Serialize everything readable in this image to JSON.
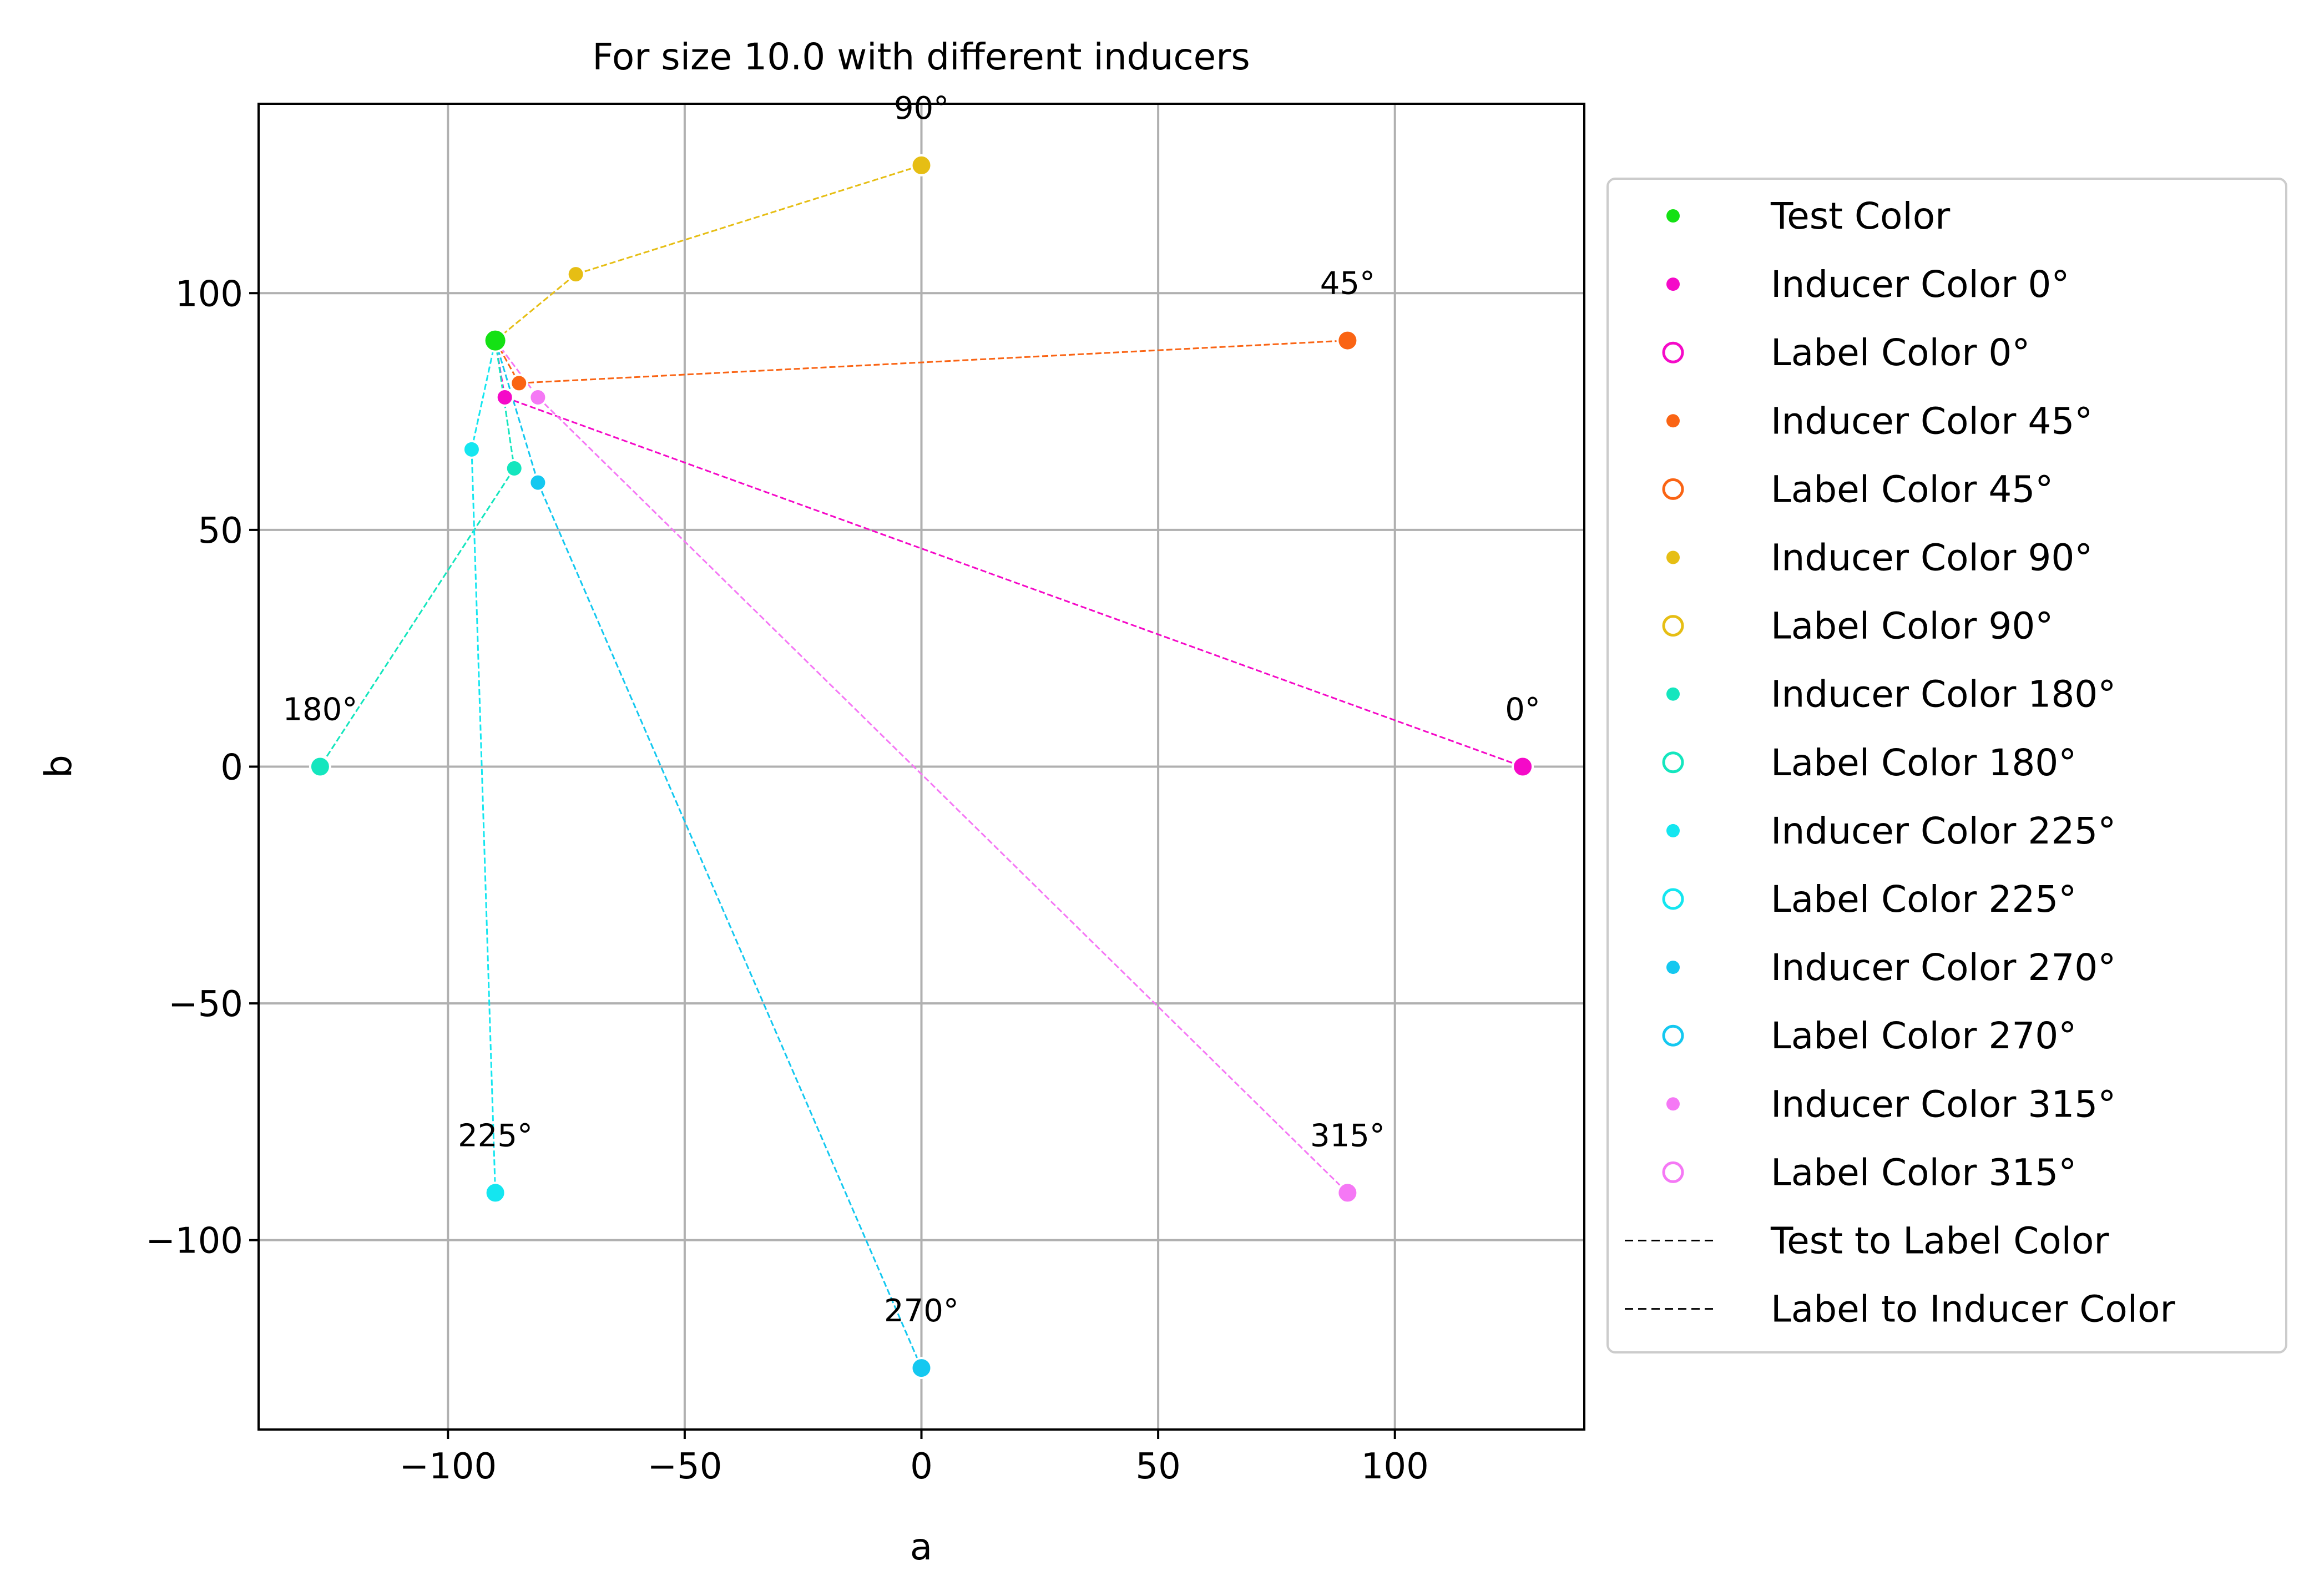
{
  "chart_data": {
    "type": "scatter",
    "title": "For size 10.0 with different inducers",
    "xlabel": "a",
    "ylabel": "b",
    "xlim": [
      -140,
      140
    ],
    "ylim": [
      -140,
      140
    ],
    "x_ticks": [
      -100,
      -50,
      0,
      50,
      100
    ],
    "y_ticks": [
      -100,
      -50,
      0,
      50,
      100
    ],
    "x_tick_labels": [
      "−100",
      "−50",
      "0",
      "50",
      "100"
    ],
    "y_tick_labels": [
      "−100",
      "−50",
      "0",
      "50",
      "100"
    ],
    "grid": true,
    "legend_position": "outside-right",
    "test_color": {
      "label": "Test Color",
      "a": -90,
      "b": 90,
      "color": "#14e114"
    },
    "inducers": [
      {
        "angle_label": "0°",
        "inducer": [
          127,
          0
        ],
        "label_point": [
          -88,
          78
        ],
        "color": "#f50ac8"
      },
      {
        "angle_label": "45°",
        "inducer": [
          90,
          90
        ],
        "label_point": [
          -85,
          81
        ],
        "color": "#fa6414"
      },
      {
        "angle_label": "90°",
        "inducer": [
          0,
          127
        ],
        "label_point": [
          -73,
          104
        ],
        "color": "#e6be14"
      },
      {
        "angle_label": "180°",
        "inducer": [
          -127,
          0
        ],
        "label_point": [
          -86,
          63
        ],
        "color": "#14e6be"
      },
      {
        "angle_label": "225°",
        "inducer": [
          -90,
          -90
        ],
        "label_point": [
          -95,
          67
        ],
        "color": "#14e6f0"
      },
      {
        "angle_label": "270°",
        "inducer": [
          0,
          -127
        ],
        "label_point": [
          -81,
          60
        ],
        "color": "#14c8f0"
      },
      {
        "angle_label": "315°",
        "inducer": [
          90,
          -90
        ],
        "label_point": [
          -81,
          78
        ],
        "color": "#f578f5"
      }
    ],
    "legend": [
      {
        "label": "Test Color",
        "marker": "filled",
        "color": "#14e114"
      },
      {
        "label": "Inducer Color 0°",
        "marker": "filled",
        "color": "#f50ac8"
      },
      {
        "label": "Label Color 0°",
        "marker": "hollow",
        "color": "#f50ac8"
      },
      {
        "label": "Inducer Color 45°",
        "marker": "filled",
        "color": "#fa6414"
      },
      {
        "label": "Label Color 45°",
        "marker": "hollow",
        "color": "#fa6414"
      },
      {
        "label": "Inducer Color 90°",
        "marker": "filled",
        "color": "#e6be14"
      },
      {
        "label": "Label Color 90°",
        "marker": "hollow",
        "color": "#e6be14"
      },
      {
        "label": "Inducer Color 180°",
        "marker": "filled",
        "color": "#14e6be"
      },
      {
        "label": "Label Color 180°",
        "marker": "hollow",
        "color": "#14e6be"
      },
      {
        "label": "Inducer Color 225°",
        "marker": "filled",
        "color": "#14e6f0"
      },
      {
        "label": "Label Color 225°",
        "marker": "hollow",
        "color": "#14e6f0"
      },
      {
        "label": "Inducer Color 270°",
        "marker": "filled",
        "color": "#14c8f0"
      },
      {
        "label": "Label Color 270°",
        "marker": "hollow",
        "color": "#14c8f0"
      },
      {
        "label": "Inducer Color 315°",
        "marker": "filled",
        "color": "#f578f5"
      },
      {
        "label": "Label Color 315°",
        "marker": "hollow",
        "color": "#f578f5"
      },
      {
        "label": "Test to Label Color",
        "marker": "dashed-line",
        "color": "#000000"
      },
      {
        "label": "Label to Inducer Color",
        "marker": "dashed-line",
        "color": "#000000"
      }
    ]
  }
}
